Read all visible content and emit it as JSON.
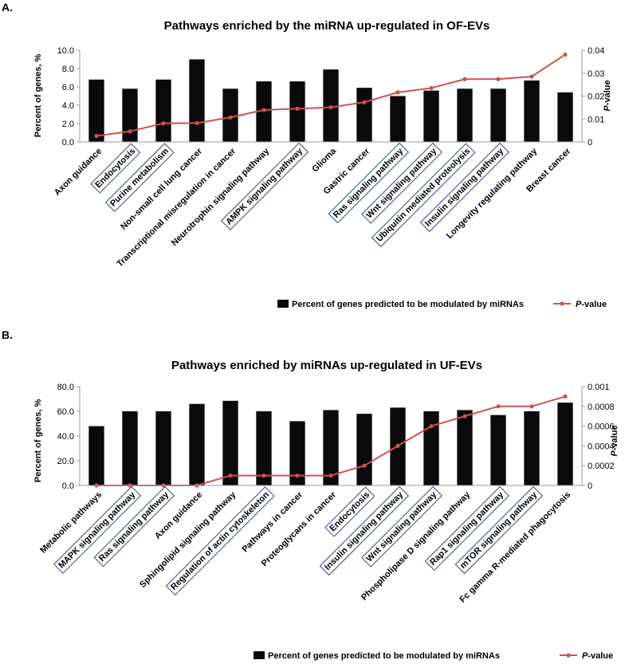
{
  "colors": {
    "bar": "#0a0a0a",
    "line": "#d05050",
    "highlight_box": "#2e4a86",
    "axis": "#9a9a9a"
  },
  "chart_data": [
    {
      "panel_label": "A.",
      "type": "bar+line",
      "title": "Pathways enriched by the miRNA up-regulated in OF-EVs",
      "ylabel": "Percent of genes, %",
      "y2label_italic": "P",
      "y2label_rest": "-value",
      "ylim": [
        0,
        10
      ],
      "y2lim": [
        0,
        0.04
      ],
      "yticks": [
        "0.0",
        "2.0",
        "4.0",
        "6.0",
        "8.0",
        "10.0"
      ],
      "y2ticks": [
        "0",
        "0.01",
        "0.02",
        "0.03",
        "0.04"
      ],
      "categories": [
        "Axon guidance",
        "Endocytosis",
        "Purine metabolism",
        "Non-small cell lung cancer",
        "Transcriptional misregulation in cancer",
        "Neurotrophin signaling pathway",
        "AMPK signaling pathway",
        "Glioma",
        "Gastric cancer",
        "Ras signaling pathway",
        "Wnt signaling pathway",
        "Ubiquitin mediated proteolysis",
        "Insulin signaling pathway",
        "Longevity regulating pathway",
        "Breast cancer"
      ],
      "boxed": [
        false,
        true,
        true,
        false,
        false,
        false,
        true,
        false,
        false,
        true,
        true,
        true,
        true,
        false,
        false
      ],
      "series": [
        {
          "name": "Percent of genes predicted to be modulated by miRNAs",
          "kind": "bar",
          "axis": "left",
          "values": [
            6.8,
            5.8,
            6.8,
            9.0,
            5.8,
            6.6,
            6.6,
            7.9,
            5.9,
            5.0,
            5.6,
            5.8,
            5.8,
            6.7,
            5.4
          ]
        },
        {
          "name": "P-value",
          "kind": "line",
          "axis": "right",
          "values": [
            0.0026,
            0.0046,
            0.0081,
            0.0082,
            0.0107,
            0.0139,
            0.0145,
            0.0151,
            0.0173,
            0.0216,
            0.0235,
            0.0274,
            0.0274,
            0.0285,
            0.0381
          ]
        }
      ],
      "legend": {
        "bar_label": "Percent of genes predicted to be modulated by miRNAs",
        "line_label_italic": "P",
        "line_label_rest": "-value",
        "position": "bottom"
      }
    },
    {
      "panel_label": "B.",
      "type": "bar+line",
      "title": "Pathways enriched by miRNAs up-regulated in UF-EVs",
      "ylabel": "Percent of genes, %",
      "y2label_italic": "P",
      "y2label_rest": "-value",
      "ylim": [
        0,
        80
      ],
      "y2lim": [
        0,
        0.001
      ],
      "yticks": [
        "0.0",
        "20.0",
        "40.0",
        "60.0",
        "80.0"
      ],
      "y2ticks": [
        "0",
        "0.0002",
        "0.0004",
        "0.0006",
        "0.0008",
        "0.001"
      ],
      "categories": [
        "Metabolic pathways",
        "MAPK signaling pathway",
        "Ras signaling pathway",
        "Axon guidance",
        "Sphingolipid signaling pathway",
        "Regulation of actin cytoskeleton",
        "Pathways in cancer",
        "Proteoglycans in cancer",
        "Endocytosis",
        "Insulin signaling pathway",
        "Wnt signaling pathway",
        "Phospholipase D signaling pathway",
        "Rap1 signaling pathway",
        "mTOR signaling pathway",
        "Fc gamma R-mediated phagocytosis"
      ],
      "boxed": [
        false,
        true,
        true,
        false,
        false,
        true,
        false,
        false,
        true,
        true,
        true,
        false,
        true,
        true,
        false
      ],
      "series": [
        {
          "name": "Percent of genes predicted to be modulated by miRNAs",
          "kind": "bar",
          "axis": "left",
          "values": [
            48.0,
            60.0,
            60.0,
            66.0,
            68.5,
            60.0,
            52.0,
            61.0,
            58.0,
            63.0,
            60.0,
            61.0,
            57.0,
            60.0,
            67.0
          ]
        },
        {
          "name": "P-value",
          "kind": "line",
          "axis": "right",
          "values": [
            0,
            0,
            0,
            0,
            0.0001,
            0.0001,
            0.0001,
            0.0001,
            0.0002,
            0.0004,
            0.0006,
            0.0007,
            0.0008,
            0.0008,
            0.0009
          ]
        }
      ],
      "legend": {
        "bar_label": "Percent of genes predicted to be modulated by miRNAs",
        "line_label_italic": "P",
        "line_label_rest": "-value",
        "position": "bottom"
      }
    }
  ]
}
